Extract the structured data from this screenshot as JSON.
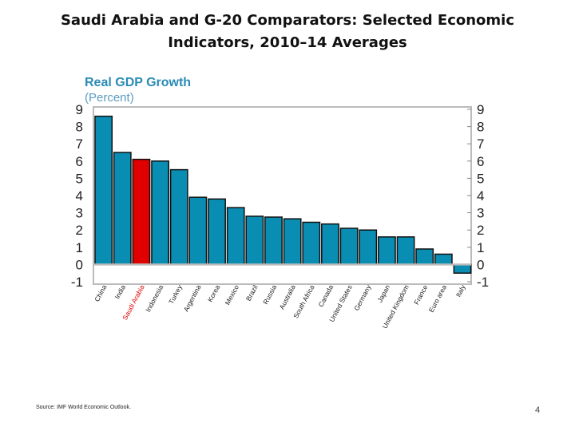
{
  "slide": {
    "title": "Saudi Arabia and G-20 Comparators: Selected Economic Indicators, 2010–14 Averages",
    "source": "Source: IMF World Economic Outlook.",
    "page_number": "4"
  },
  "chart_data": {
    "type": "bar",
    "title": "Real GDP Growth",
    "subtitle": "(Percent)",
    "categories": [
      "China",
      "India",
      "Saudi Arabia",
      "Indonesia",
      "Turkey",
      "Argentina",
      "Korea",
      "Mexico",
      "Brazil",
      "Russia",
      "Australia",
      "South Africa",
      "Canada",
      "United States",
      "Germany",
      "Japan",
      "United Kingdom",
      "France",
      "Euro area",
      "Italy"
    ],
    "values": [
      8.6,
      6.5,
      6.1,
      6.0,
      5.5,
      3.9,
      3.8,
      3.3,
      2.8,
      2.75,
      2.65,
      2.45,
      2.35,
      2.1,
      2.0,
      1.6,
      1.6,
      0.9,
      0.6,
      -0.5
    ],
    "highlight": "Saudi Arabia",
    "ylim": [
      -1,
      9
    ],
    "yticks": [
      -1,
      0,
      1,
      2,
      3,
      4,
      5,
      6,
      7,
      8,
      9
    ],
    "y_axis": "both sides",
    "colors": {
      "bar": "#0a8db3",
      "highlight": "#e00000",
      "title": "#2a8bb5",
      "highlight_label": "#e00000"
    },
    "grid": false
  }
}
